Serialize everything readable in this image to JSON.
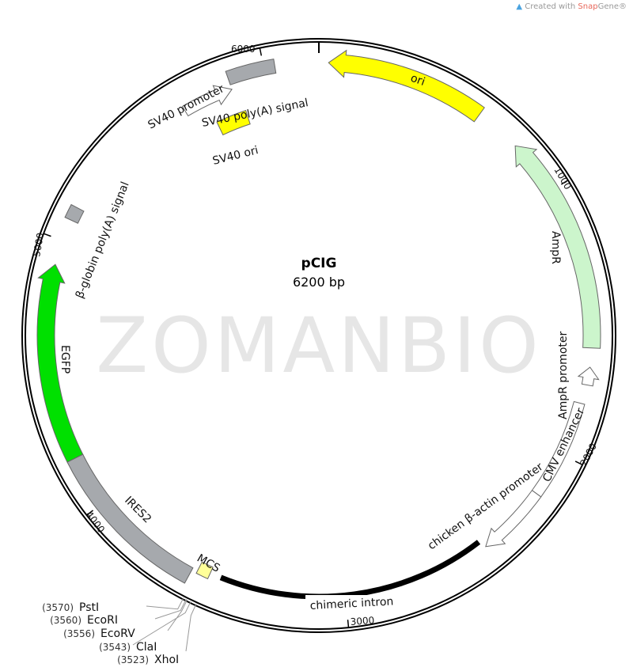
{
  "credit": {
    "prefix": "Created with ",
    "brand": "Snap",
    "brand2": "Gene",
    "mark": "®",
    "logo_icon": "snapgene-logo-icon"
  },
  "watermark": "ZOMANBIO",
  "plasmid": {
    "name": "pCIG",
    "size_label": "6200 bp",
    "length": 6200
  },
  "ticks": [
    {
      "bp": 1000,
      "label": "1000"
    },
    {
      "bp": 2000,
      "label": "2000"
    },
    {
      "bp": 3000,
      "label": "3000"
    },
    {
      "bp": 4000,
      "label": "4000"
    },
    {
      "bp": 5000,
      "label": "5000"
    },
    {
      "bp": 6000,
      "label": "6000"
    }
  ],
  "features": [
    {
      "name": "ori",
      "start": 35,
      "end": 620,
      "direction": "reverse",
      "type": "arrow",
      "color": "#ffff00"
    },
    {
      "name": "AmpR",
      "start": 792,
      "end": 1595,
      "direction": "reverse",
      "type": "arrow",
      "color": "#ccf5cc"
    },
    {
      "name": "AmpR promoter",
      "start": 1665,
      "end": 1730,
      "direction": "reverse",
      "type": "arrow",
      "color": "#ffffff"
    },
    {
      "name": "CMV enhancer",
      "start": 1800,
      "end": 2170,
      "direction": "none",
      "type": "box",
      "color": "#ffffff"
    },
    {
      "name": "chicken β-actin promoter",
      "start": 2170,
      "end": 2440,
      "direction": "forward",
      "type": "arrow",
      "color": "#ffffff"
    },
    {
      "name": "chimeric intron",
      "start": 2450,
      "end": 3480,
      "direction": "none",
      "type": "line",
      "color": "#000000"
    },
    {
      "name": "MCS",
      "start": 3523,
      "end": 3570,
      "direction": "none",
      "type": "box",
      "color": "#ffff99"
    },
    {
      "name": "IRES2",
      "start": 3590,
      "end": 4190,
      "direction": "none",
      "type": "box",
      "color": "#a6a9ad"
    },
    {
      "name": "EGFP",
      "start": 4190,
      "end": 4910,
      "direction": "forward",
      "type": "arrow",
      "color": "#00e000"
    },
    {
      "name": "β-globin poly(A) signal",
      "start": 5080,
      "end": 5130,
      "direction": "none",
      "type": "box",
      "color": "#a6a9ad"
    },
    {
      "name": "SV40 promoter",
      "start": 5670,
      "end": 5865,
      "direction": "forward",
      "type": "arrow",
      "color": "#ffffff"
    },
    {
      "name": "SV40 poly(A) signal",
      "start": 5865,
      "end": 6040,
      "direction": "none",
      "type": "box",
      "color": "#a6a9ad"
    },
    {
      "name": "SV40 ori",
      "start": 5760,
      "end": 5890,
      "direction": "none",
      "type": "box",
      "color": "#ffff00"
    }
  ],
  "sites": [
    {
      "name": "PstI",
      "position": "(3570)",
      "bp": 3570
    },
    {
      "name": "EcoRI",
      "position": "(3560)",
      "bp": 3560
    },
    {
      "name": "EcoRV",
      "position": "(3556)",
      "bp": 3556
    },
    {
      "name": "ClaI",
      "position": "(3543)",
      "bp": 3543
    },
    {
      "name": "XhoI",
      "position": "(3523)",
      "bp": 3523
    }
  ]
}
